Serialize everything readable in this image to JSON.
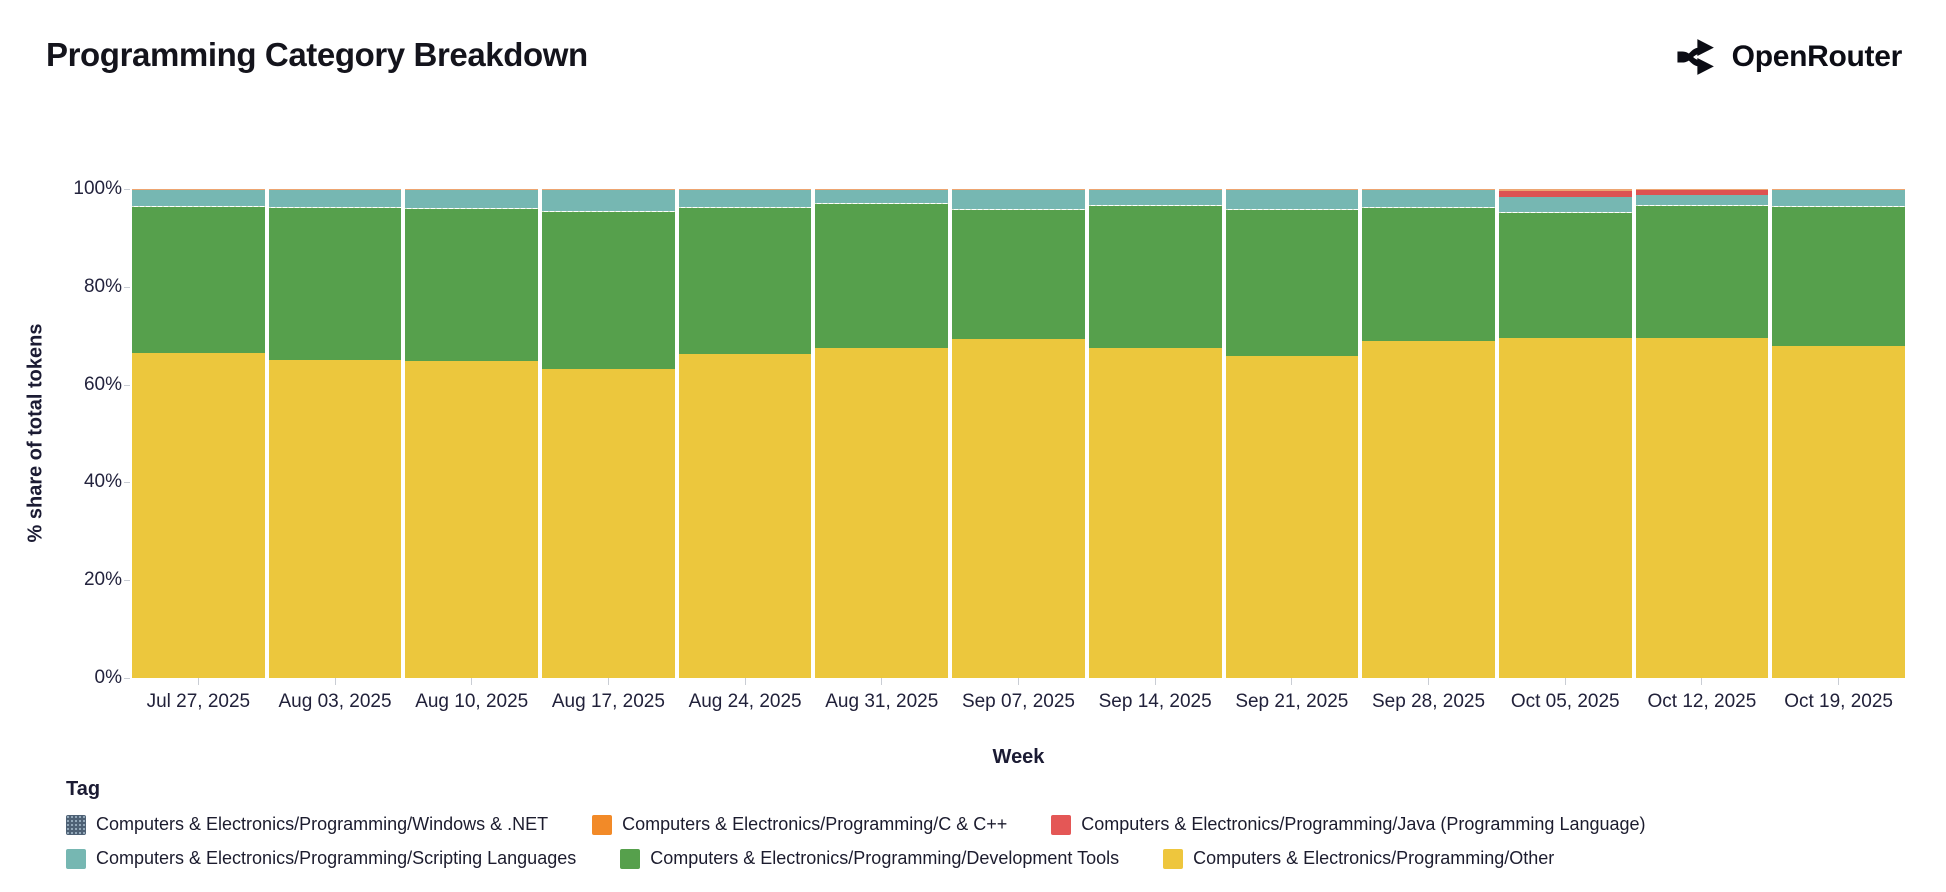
{
  "header": {
    "title": "Programming Category Breakdown",
    "logo_text": "OpenRouter"
  },
  "chart_data": {
    "type": "bar",
    "variant": "100%-stacked-vertical",
    "title": "Programming Category Breakdown",
    "xlabel": "Week",
    "ylabel": "% share of total tokens",
    "ylim": [
      0,
      100
    ],
    "yticks": [
      0,
      20,
      40,
      60,
      80,
      100
    ],
    "ytick_labels": [
      "0%",
      "20%",
      "40%",
      "60%",
      "80%",
      "100%"
    ],
    "grid": false,
    "categories": [
      "Jul 27, 2025",
      "Aug 03, 2025",
      "Aug 10, 2025",
      "Aug 17, 2025",
      "Aug 24, 2025",
      "Aug 31, 2025",
      "Sep 07, 2025",
      "Sep 14, 2025",
      "Sep 21, 2025",
      "Sep 28, 2025",
      "Oct 05, 2025",
      "Oct 12, 2025",
      "Oct 19, 2025"
    ],
    "stack_order_note": "series listed bottom-to-top as stacked in each bar",
    "series": [
      {
        "name": "Computers & Electronics/Programming/Other",
        "color": "#ecc73d",
        "values": [
          66.5,
          65.2,
          64.8,
          63.2,
          66.3,
          67.6,
          69.3,
          67.5,
          66.0,
          69.0,
          69.5,
          69.5,
          68.0
        ]
      },
      {
        "name": "Computers & Electronics/Programming/Development Tools",
        "color": "#56a04c",
        "values": [
          30.0,
          31.1,
          31.2,
          32.1,
          30.0,
          29.5,
          26.6,
          29.2,
          29.8,
          27.2,
          25.6,
          27.2,
          28.5
        ]
      },
      {
        "name": "Computers & Electronics/Programming/Windows & .NET",
        "color": "#4e6175",
        "pattern": "dots",
        "values": [
          0.1,
          0.1,
          0.1,
          0.1,
          0.1,
          0.1,
          0.1,
          0.1,
          0.1,
          0.1,
          0.1,
          0.1,
          0.1
        ]
      },
      {
        "name": "Computers & Electronics/Programming/Scripting Languages",
        "color": "#76b7b2",
        "values": [
          3.2,
          3.3,
          3.6,
          4.3,
          3.3,
          2.5,
          3.7,
          2.9,
          3.8,
          3.4,
          3.1,
          1.9,
          3.1
        ]
      },
      {
        "name": "Computers & Electronics/Programming/Java (Programming Language)",
        "color": "#dd5252",
        "values": [
          0,
          0,
          0,
          0,
          0,
          0,
          0,
          0,
          0,
          0,
          1.2,
          1.0,
          0
        ]
      },
      {
        "name": "Computers & Electronics/Programming/C & C++",
        "color": "#eda571",
        "values": [
          0.2,
          0.3,
          0.3,
          0.3,
          0.3,
          0.3,
          0.3,
          0.3,
          0.3,
          0.3,
          0.5,
          0.3,
          0.3
        ]
      }
    ],
    "legend": {
      "title": "Tag",
      "position": "bottom-left",
      "rows": [
        [
          {
            "label": "Computers & Electronics/Programming/Windows & .NET",
            "color": "#4e6175",
            "pattern": "dots"
          },
          {
            "label": "Computers & Electronics/Programming/C & C++",
            "color": "#f28a28"
          },
          {
            "label": "Computers & Electronics/Programming/Java (Programming Language)",
            "color": "#e45756"
          }
        ],
        [
          {
            "label": "Computers & Electronics/Programming/Scripting Languages",
            "color": "#76b7b2"
          },
          {
            "label": "Computers & Electronics/Programming/Development Tools",
            "color": "#56a04c"
          },
          {
            "label": "Computers & Electronics/Programming/Other",
            "color": "#eec63d"
          }
        ]
      ]
    }
  }
}
